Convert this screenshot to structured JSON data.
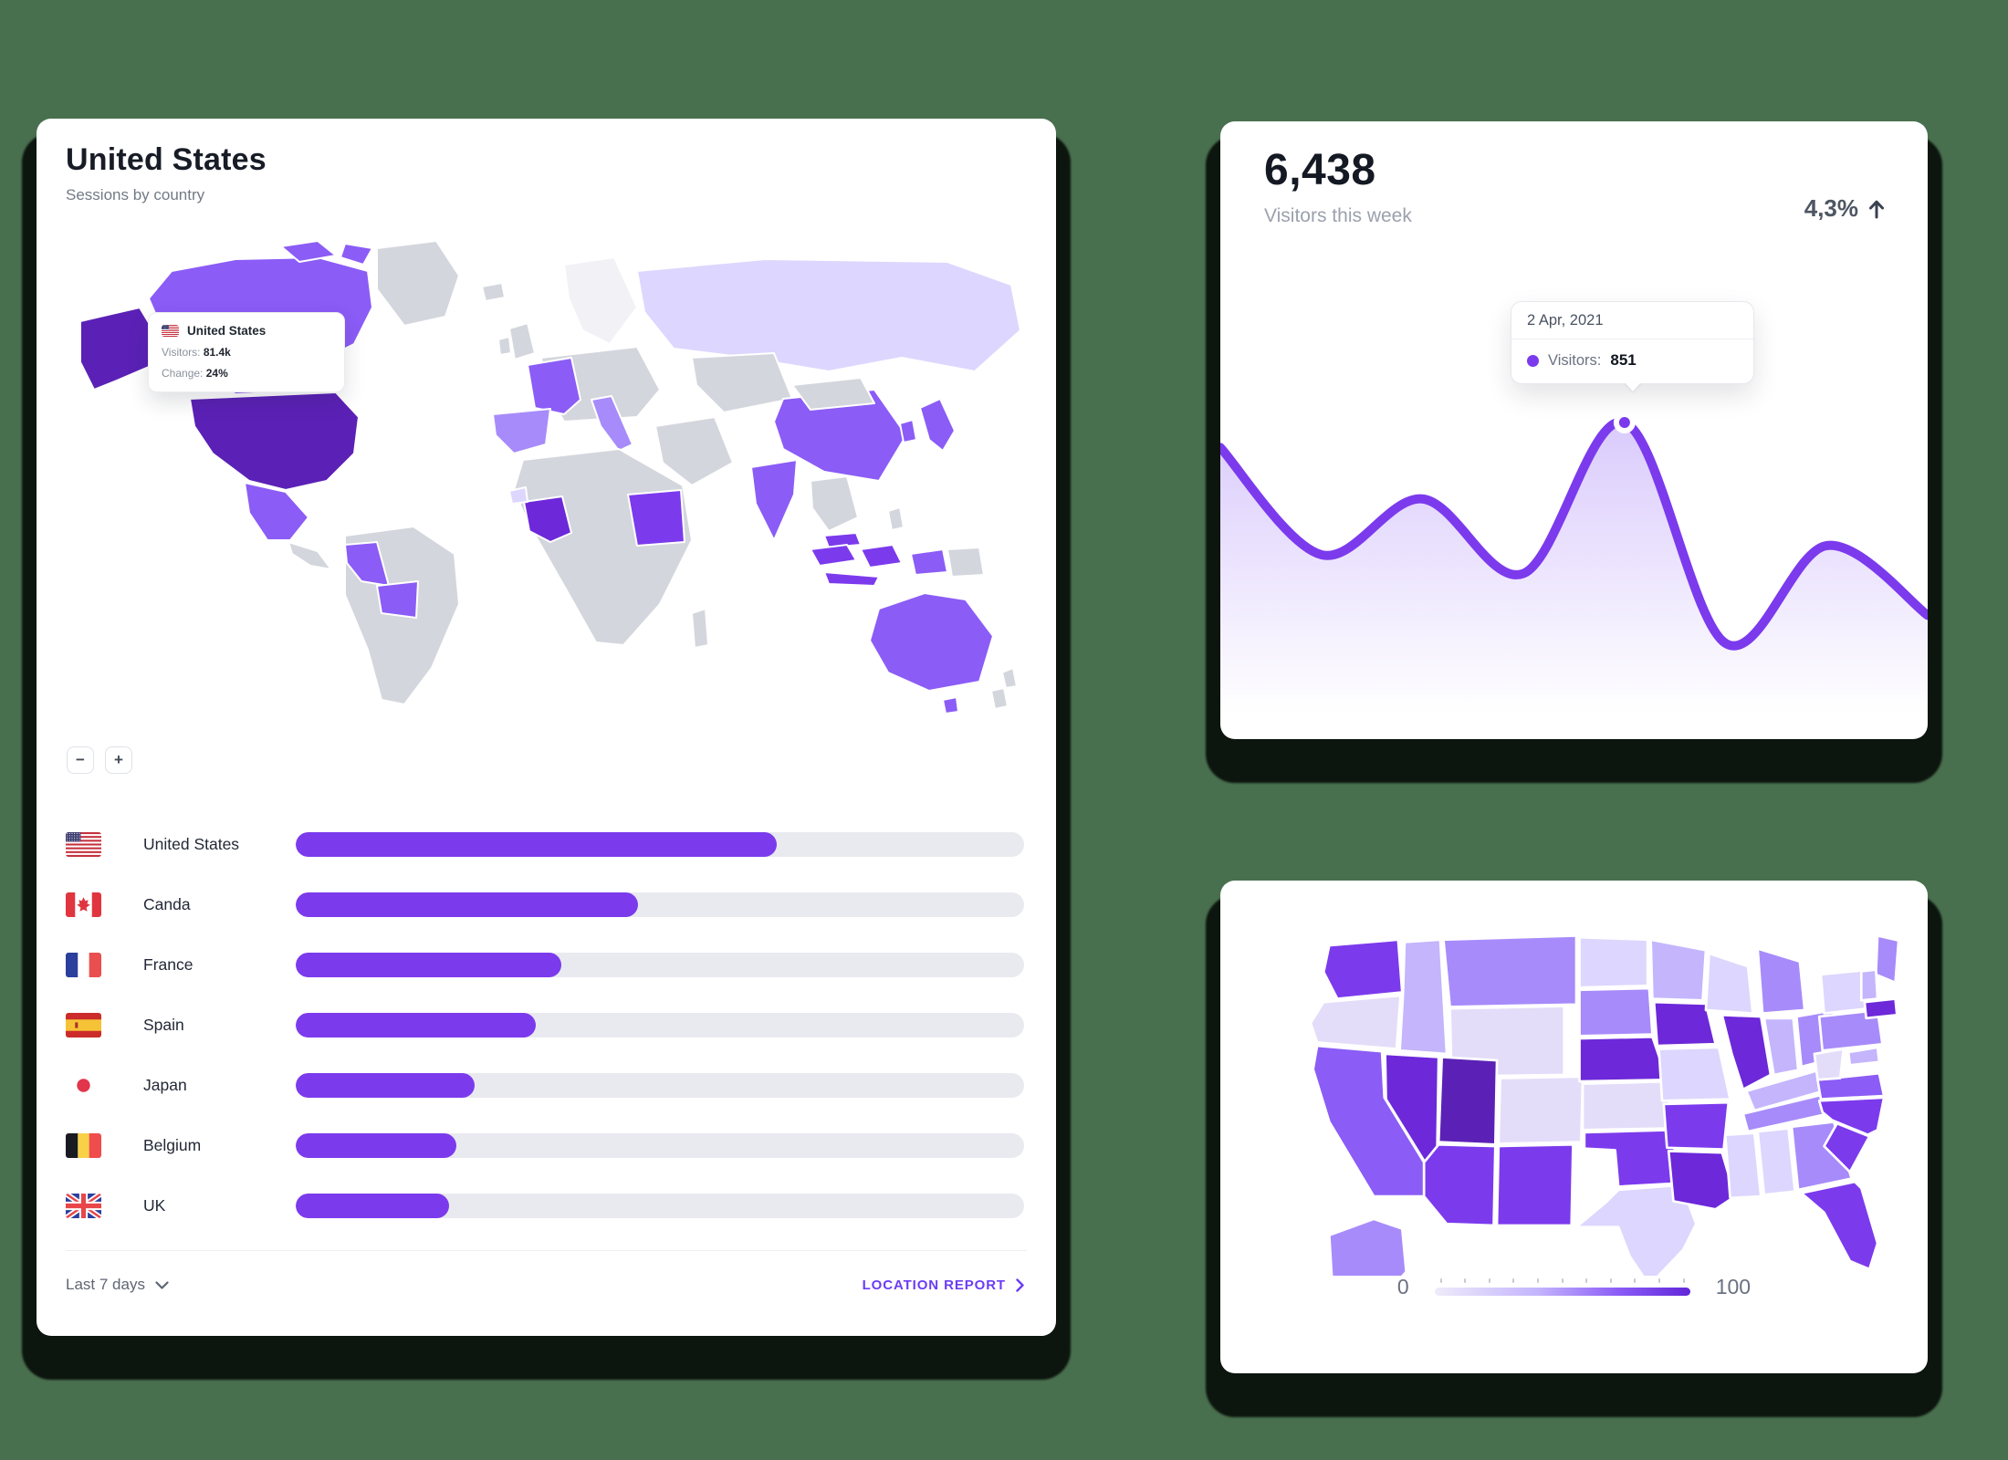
{
  "theme": {
    "background": "#49704E",
    "card_bg": "#FFFFFF",
    "accent_purple": "#7C3AED",
    "bar_track": "#E9EAEF",
    "choropleth_stops": [
      "#F1EEFB",
      "#E4DDF9",
      "#DDD6FE",
      "#C4B5FD",
      "#A78BFA",
      "#8B5CF6",
      "#7C3AED",
      "#6D28D9",
      "#5B21B6"
    ]
  },
  "sessions_card": {
    "title": "United States",
    "subtitle": "Sessions by country",
    "map_tooltip": {
      "country": "United States",
      "visitors_label": "Visitors:",
      "visitors": "81.4k",
      "change_label": "Change:",
      "change": "24%"
    },
    "zoom_out_label": "−",
    "zoom_in_label": "+",
    "countries": [
      {
        "name": "United States",
        "flag": "us",
        "percent": 66
      },
      {
        "name": "Canda",
        "flag": "ca",
        "percent": 47
      },
      {
        "name": "France",
        "flag": "fr",
        "percent": 36.5
      },
      {
        "name": "Spain",
        "flag": "es",
        "percent": 33
      },
      {
        "name": "Japan",
        "flag": "jp",
        "percent": 24.6
      },
      {
        "name": "Belgium",
        "flag": "be",
        "percent": 22
      },
      {
        "name": "UK",
        "flag": "uk",
        "percent": 21
      }
    ],
    "world_map_values": {
      "united_states": 95,
      "canada": 60,
      "mexico": 55,
      "peru": 60,
      "bolivia": 55,
      "russia": 25,
      "china": 62,
      "india": 58,
      "japan": 60,
      "south_korea": 55,
      "australia": 62,
      "tasmania": 62,
      "indonesia": 78,
      "malaysia": 70,
      "west_papua": 65,
      "france": 60,
      "spain": 42,
      "italy": 45,
      "sudan": 72,
      "west_africa": 82,
      "senegal": 30
    },
    "footer": {
      "range_label": "Last 7 days",
      "report_label": "LOCATION REPORT"
    },
    "chart_data": {
      "type": "bar",
      "categories": [
        "United States",
        "Canda",
        "France",
        "Spain",
        "Japan",
        "Belgium",
        "UK"
      ],
      "values": [
        66,
        47,
        36.5,
        33,
        24.6,
        22,
        21
      ],
      "title": "Sessions by country",
      "ylim": [
        0,
        100
      ]
    }
  },
  "visitors_card": {
    "value": "6,438",
    "label": "Visitors this week",
    "delta": "4,3%",
    "delta_direction": "up",
    "tooltip": {
      "date": "2 Apr, 2021",
      "series_label": "Visitors:",
      "value": "851"
    },
    "chart_data": {
      "type": "area",
      "x": [
        0,
        1,
        2,
        3,
        4,
        5,
        6,
        7
      ],
      "values": [
        783,
        491,
        643,
        440,
        851,
        250,
        516,
        326
      ],
      "y_min": 250,
      "y_max": 851,
      "highlight_index": 4,
      "highlight_date": "2 Apr, 2021",
      "highlight_value": 851,
      "line_color": "#7C3AED"
    }
  },
  "us_map_card": {
    "legend": {
      "min": "0",
      "max": "100"
    },
    "chart_data": {
      "type": "heatmap",
      "title": "Visitors by US state (0-100)",
      "states": {
        "WA": 75,
        "OR": 8,
        "CA": 60,
        "NV": 85,
        "ID": 35,
        "MT": 45,
        "WY": 8,
        "UT": 95,
        "CO": 20,
        "AZ": 75,
        "NM": 75,
        "ND": 22,
        "SD": 45,
        "NE": 85,
        "KS": 8,
        "OK": 75,
        "TX": 30,
        "MN": 35,
        "IA": 85,
        "MO": 22,
        "AR": 75,
        "LA": 85,
        "WI": 22,
        "IL": 85,
        "MI": 45,
        "IN": 35,
        "OH": 45,
        "KY": 35,
        "TN": 45,
        "MS": 22,
        "AL": 22,
        "GA": 45,
        "FL": 75,
        "SC": 75,
        "NC": 75,
        "VA": 60,
        "WV": 8,
        "PA": 45,
        "NY": 22,
        "ME": 45,
        "VT_NH": 35,
        "MA_CT": 85,
        "MD_DE": 35,
        "AK": 45,
        "HI": 75,
        "PR": 75
      }
    }
  }
}
